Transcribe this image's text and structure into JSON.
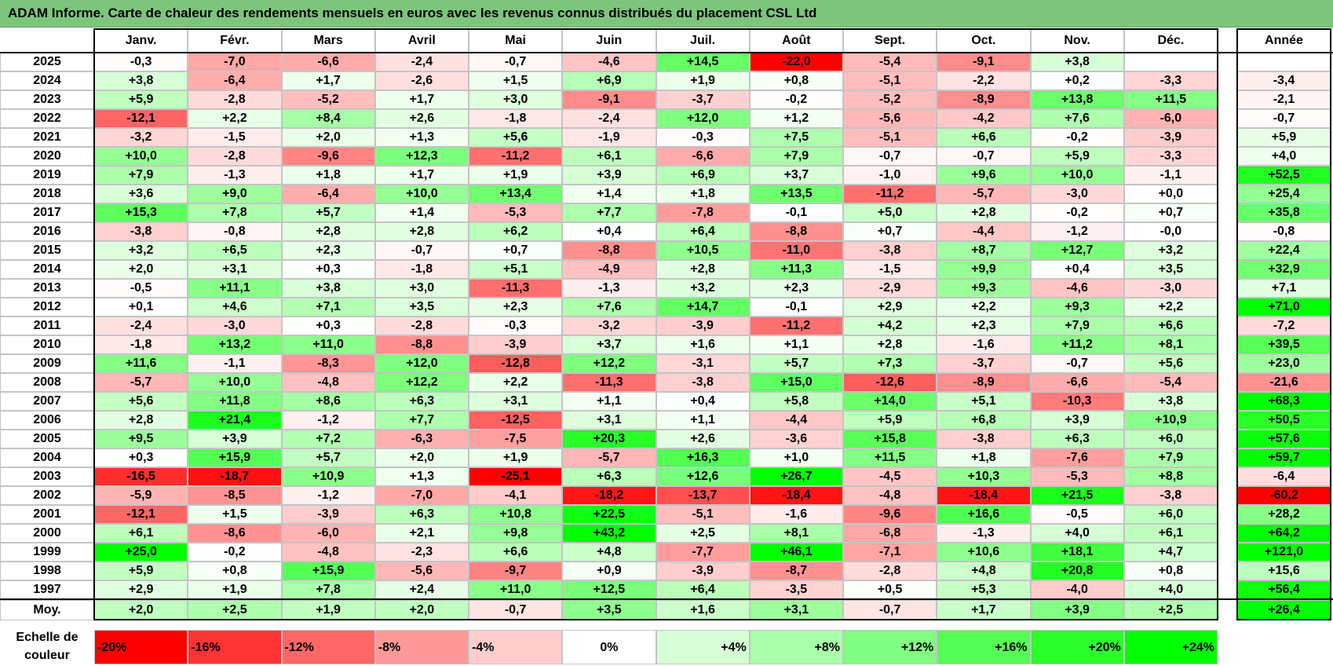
{
  "title": "ADAM Informe. Carte de chaleur des rendements mensuels en euros avec les revenus connus distribués du placement CSL Ltd",
  "chart_data": {
    "type": "heatmap",
    "title": "ADAM Informe. Carte de chaleur des rendements mensuels en euros avec les revenus connus distribués du placement CSL Ltd",
    "columns": [
      "Janv.",
      "Févr.",
      "Mars",
      "Avril",
      "Mai",
      "Juin",
      "Juil.",
      "Août",
      "Sept.",
      "Oct.",
      "Nov.",
      "Déc."
    ],
    "year_column": "Année",
    "rows": [
      {
        "year": "2025",
        "values": [
          "-0,3",
          "-7,0",
          "-6,6",
          "-2,4",
          "-0,7",
          "-4,6",
          "+14,5",
          "-22,0",
          "-5,4",
          "-9,1",
          "+3,8",
          ""
        ],
        "annual": ""
      },
      {
        "year": "2024",
        "values": [
          "+3,8",
          "-6,4",
          "+1,7",
          "-2,6",
          "+1,5",
          "+6,9",
          "+1,9",
          "+0,8",
          "-5,1",
          "-2,2",
          "+0,2",
          "-3,3"
        ],
        "annual": "-3,4"
      },
      {
        "year": "2023",
        "values": [
          "+5,9",
          "-2,8",
          "-5,2",
          "+1,7",
          "+3,0",
          "-9,1",
          "-3,7",
          "-0,2",
          "-5,2",
          "-8,9",
          "+13,8",
          "+11,5"
        ],
        "annual": "-2,1"
      },
      {
        "year": "2022",
        "values": [
          "-12,1",
          "+2,2",
          "+8,4",
          "+2,6",
          "-1,8",
          "-2,4",
          "+12,0",
          "+1,2",
          "-5,6",
          "-4,2",
          "+7,6",
          "-6,0"
        ],
        "annual": "-0,7"
      },
      {
        "year": "2021",
        "values": [
          "-3,2",
          "-1,5",
          "+2,0",
          "+1,3",
          "+5,6",
          "-1,9",
          "-0,3",
          "+7,5",
          "-5,1",
          "+6,6",
          "-0,2",
          "-3,9"
        ],
        "annual": "+5,9"
      },
      {
        "year": "2020",
        "values": [
          "+10,0",
          "-2,8",
          "-9,6",
          "+12,3",
          "-11,2",
          "+6,1",
          "-6,6",
          "+7,9",
          "-0,7",
          "-0,7",
          "+5,9",
          "-3,3"
        ],
        "annual": "+4,0"
      },
      {
        "year": "2019",
        "values": [
          "+7,9",
          "-1,3",
          "+1,8",
          "+1,7",
          "+1,9",
          "+3,9",
          "+6,9",
          "+3,7",
          "-1,0",
          "+9,6",
          "+10,0",
          "-1,1"
        ],
        "annual": "+52,5"
      },
      {
        "year": "2018",
        "values": [
          "+3,6",
          "+9,0",
          "-6,4",
          "+10,0",
          "+13,4",
          "+1,4",
          "+1,8",
          "+13,5",
          "-11,2",
          "-5,7",
          "-3,0",
          "+0,0"
        ],
        "annual": "+25,4"
      },
      {
        "year": "2017",
        "values": [
          "+15,3",
          "+7,8",
          "+5,7",
          "+1,4",
          "-5,3",
          "+7,7",
          "-7,8",
          "-0,1",
          "+5,0",
          "+2,8",
          "-0,2",
          "+0,7"
        ],
        "annual": "+35,8"
      },
      {
        "year": "2016",
        "values": [
          "-3,8",
          "-0,8",
          "+2,8",
          "+2,8",
          "+6,2",
          "+0,4",
          "+6,4",
          "-8,8",
          "+0,7",
          "-4,4",
          "-1,2",
          "-0,0"
        ],
        "annual": "-0,8"
      },
      {
        "year": "2015",
        "values": [
          "+3,2",
          "+6,5",
          "+2,3",
          "-0,7",
          "+0,7",
          "-8,8",
          "+10,5",
          "-11,0",
          "-3,8",
          "+8,7",
          "+12,7",
          "+3,2"
        ],
        "annual": "+22,4"
      },
      {
        "year": "2014",
        "values": [
          "+2,0",
          "+3,1",
          "+0,3",
          "-1,8",
          "+5,1",
          "-4,9",
          "+2,8",
          "+11,3",
          "-1,5",
          "+9,9",
          "+0,4",
          "+3,5"
        ],
        "annual": "+32,9"
      },
      {
        "year": "2013",
        "values": [
          "-0,5",
          "+11,1",
          "+3,8",
          "+3,0",
          "-11,3",
          "-1,3",
          "+3,2",
          "+2,3",
          "-2,9",
          "+9,3",
          "-4,6",
          "-3,0"
        ],
        "annual": "+7,1"
      },
      {
        "year": "2012",
        "values": [
          "+0,1",
          "+4,6",
          "+7,1",
          "+3,5",
          "+2,3",
          "+7,6",
          "+14,7",
          "-0,1",
          "+2,9",
          "+2,2",
          "+9,3",
          "+2,2"
        ],
        "annual": "+71,0"
      },
      {
        "year": "2011",
        "values": [
          "-2,4",
          "-3,0",
          "+0,3",
          "-2,8",
          "-0,3",
          "-3,2",
          "-3,9",
          "-11,2",
          "+4,2",
          "+2,3",
          "+7,9",
          "+6,6"
        ],
        "annual": "-7,2"
      },
      {
        "year": "2010",
        "values": [
          "-1,8",
          "+13,2",
          "+11,0",
          "-8,8",
          "-3,9",
          "+3,7",
          "+1,6",
          "+1,1",
          "+2,8",
          "-1,6",
          "+11,2",
          "+8,1"
        ],
        "annual": "+39,5"
      },
      {
        "year": "2009",
        "values": [
          "+11,6",
          "-1,1",
          "-8,3",
          "+12,0",
          "-12,8",
          "+12,2",
          "-3,1",
          "+5,7",
          "+7,3",
          "-3,7",
          "-0,7",
          "+5,6"
        ],
        "annual": "+23,0"
      },
      {
        "year": "2008",
        "values": [
          "-5,7",
          "+10,0",
          "-4,8",
          "+12,2",
          "+2,2",
          "-11,3",
          "-3,8",
          "+15,0",
          "-12,6",
          "-8,9",
          "-6,6",
          "-5,4"
        ],
        "annual": "-21,6"
      },
      {
        "year": "2007",
        "values": [
          "+5,6",
          "+11,8",
          "+8,6",
          "+6,3",
          "+3,1",
          "+1,1",
          "+0,4",
          "+5,8",
          "+14,0",
          "+5,1",
          "-10,3",
          "+3,8"
        ],
        "annual": "+68,3"
      },
      {
        "year": "2006",
        "values": [
          "+2,8",
          "+21,4",
          "-1,2",
          "+7,7",
          "-12,5",
          "+3,1",
          "+1,1",
          "-4,4",
          "+5,9",
          "+6,8",
          "+3,9",
          "+10,9"
        ],
        "annual": "+50,5"
      },
      {
        "year": "2005",
        "values": [
          "+9,5",
          "+3,9",
          "+7,2",
          "-6,3",
          "-7,5",
          "+20,3",
          "+2,6",
          "-3,6",
          "+15,8",
          "-3,8",
          "+6,3",
          "+6,0"
        ],
        "annual": "+57,6"
      },
      {
        "year": "2004",
        "values": [
          "+0,3",
          "+15,9",
          "+5,7",
          "+2,0",
          "+1,9",
          "-5,7",
          "+16,3",
          "+1,0",
          "+11,5",
          "+1,8",
          "-7,6",
          "+7,9"
        ],
        "annual": "+59,7"
      },
      {
        "year": "2003",
        "values": [
          "-16,5",
          "-18,7",
          "+10,9",
          "+1,3",
          "-25,1",
          "+6,3",
          "+12,6",
          "+26,7",
          "-4,5",
          "+10,3",
          "-5,3",
          "+8,8"
        ],
        "annual": "-6,4"
      },
      {
        "year": "2002",
        "values": [
          "-5,9",
          "-8,5",
          "-1,2",
          "-7,0",
          "-4,1",
          "-18,2",
          "-13,7",
          "-18,4",
          "-4,8",
          "-18,4",
          "+21,5",
          "-3,8"
        ],
        "annual": "-60,2"
      },
      {
        "year": "2001",
        "values": [
          "-12,1",
          "+1,5",
          "-3,9",
          "+6,3",
          "+10,8",
          "+22,5",
          "-5,1",
          "-1,6",
          "-9,6",
          "+16,6",
          "-0,5",
          "+6,0"
        ],
        "annual": "+28,2"
      },
      {
        "year": "2000",
        "values": [
          "+6,1",
          "-8,6",
          "-6,0",
          "+2,1",
          "+9,8",
          "+43,2",
          "+2,5",
          "+8,1",
          "-6,8",
          "-1,3",
          "+4,0",
          "+6,1"
        ],
        "annual": "+64,2"
      },
      {
        "year": "1999",
        "values": [
          "+25,0",
          "-0,2",
          "-4,8",
          "-2,3",
          "+6,6",
          "+4,8",
          "-7,7",
          "+46,1",
          "-7,1",
          "+10,6",
          "+18,1",
          "+4,7"
        ],
        "annual": "+121,0"
      },
      {
        "year": "1998",
        "values": [
          "+5,9",
          "+0,8",
          "+15,9",
          "-5,6",
          "-9,7",
          "+0,9",
          "-3,9",
          "-8,7",
          "-2,8",
          "+4,8",
          "+20,8",
          "+0,8"
        ],
        "annual": "+15,6"
      },
      {
        "year": "1997",
        "values": [
          "+2,9",
          "+1,9",
          "+7,8",
          "+2,4",
          "+11,0",
          "+12,5",
          "+6,4",
          "-3,5",
          "+0,5",
          "+5,3",
          "-4,0",
          "+4,0"
        ],
        "annual": "+56,4"
      }
    ],
    "average": {
      "label": "Moy.",
      "values": [
        "+2,0",
        "+2,5",
        "+1,9",
        "+2,0",
        "-0,7",
        "+3,5",
        "+1,6",
        "+3,1",
        "-0,7",
        "+1,7",
        "+3,9",
        "+2,5"
      ],
      "annual": "+26,4"
    },
    "color_scale": {
      "label": "Echelle de\ncouleur",
      "stops": [
        {
          "label": "-20%",
          "value": -20,
          "color": "#ff0000"
        },
        {
          "label": "-16%",
          "value": -16,
          "color": "#ff3434"
        },
        {
          "label": "-12%",
          "value": -12,
          "color": "#ff6767"
        },
        {
          "label": "-8%",
          "value": -8,
          "color": "#ff9999"
        },
        {
          "label": "-4%",
          "value": -4,
          "color": "#ffcccc"
        },
        {
          "label": "0%",
          "value": 0,
          "color": "#ffffff"
        },
        {
          "label": "+4%",
          "value": 4,
          "color": "#d5ffd5"
        },
        {
          "label": "+8%",
          "value": 8,
          "color": "#aaffaa"
        },
        {
          "label": "+12%",
          "value": 12,
          "color": "#80ff80"
        },
        {
          "label": "+16%",
          "value": 16,
          "color": "#55ff55"
        },
        {
          "label": "+20%",
          "value": 20,
          "color": "#2bff2b"
        },
        {
          "label": "+24%",
          "value": 24,
          "color": "#00ff00"
        }
      ]
    },
    "colors": {
      "negative_max": "#ff0000",
      "neutral": "#ffffff",
      "positive_max": "#00ff00",
      "title_bar": "#7dc57d"
    }
  }
}
